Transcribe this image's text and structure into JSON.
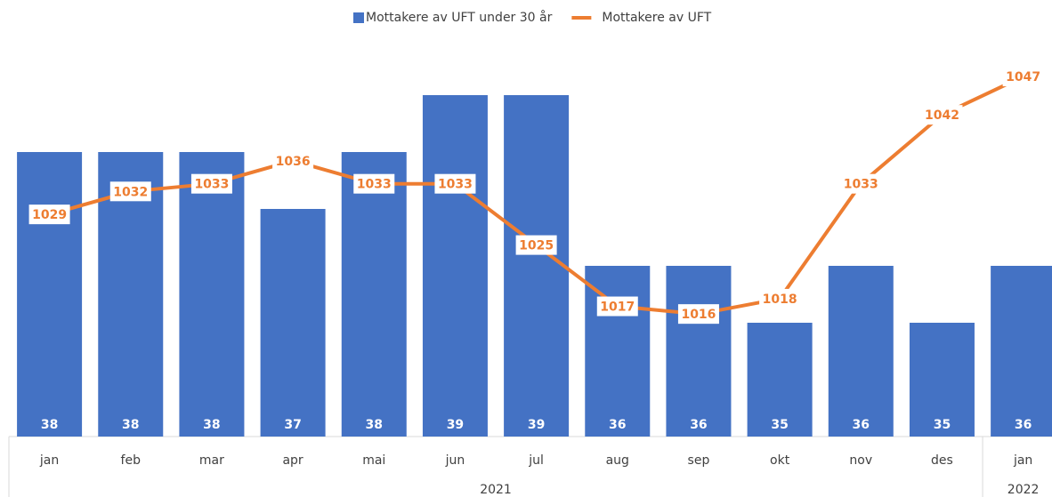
{
  "chart_data": {
    "type": "bar-line",
    "categories": [
      "jan",
      "feb",
      "mar",
      "apr",
      "mai",
      "jun",
      "jul",
      "aug",
      "sep",
      "okt",
      "nov",
      "des",
      "jan"
    ],
    "groups": [
      {
        "label": "2021",
        "span": 12
      },
      {
        "label": "2022",
        "span": 1
      }
    ],
    "series": [
      {
        "name": "Mottakere av UFT under 30 år",
        "type": "bar",
        "color": "#4472c4",
        "values": [
          38,
          38,
          38,
          37,
          38,
          39,
          39,
          36,
          36,
          35,
          36,
          35,
          36
        ]
      },
      {
        "name": "Mottakere av UFT",
        "type": "line",
        "axis": "y2",
        "color": "#ed7d31",
        "values": [
          1029,
          1032,
          1033,
          1036,
          1033,
          1033,
          1025,
          1017,
          1016,
          1018,
          1033,
          1042,
          1047
        ]
      }
    ],
    "ylim": [
      33,
      40
    ],
    "y2lim": [
      1000,
      1052
    ],
    "legend": "top"
  }
}
